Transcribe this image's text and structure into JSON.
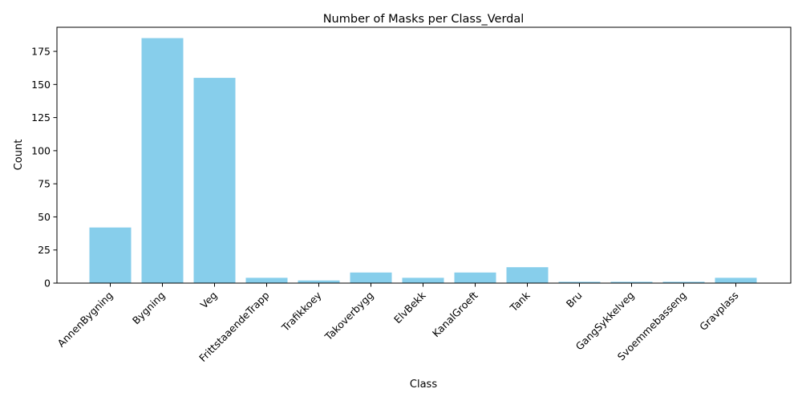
{
  "chart_data": {
    "type": "bar",
    "title": "Number of Masks per Class_Verdal",
    "xlabel": "Class",
    "ylabel": "Count",
    "categories": [
      "AnnenBygning",
      "Bygning",
      "Veg",
      "FrittstaaendeTrapp",
      "Trafikkoey",
      "Takoverbygg",
      "ElvBekk",
      "KanalGroeft",
      "Tank",
      "Bru",
      "GangSykkelveg",
      "Svoemmebasseng",
      "Gravplass"
    ],
    "values": [
      42,
      185,
      155,
      4,
      2,
      8,
      4,
      8,
      12,
      1,
      1,
      1,
      4
    ],
    "ylim": [
      0,
      193.2
    ],
    "yticks": [
      0,
      25,
      50,
      75,
      100,
      125,
      150,
      175
    ],
    "grid": false,
    "bar_color": "#87ceeb",
    "x_tick_rotation_deg": 45
  }
}
